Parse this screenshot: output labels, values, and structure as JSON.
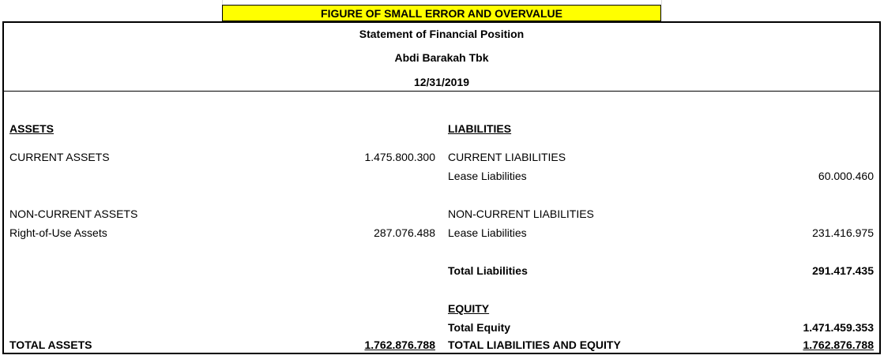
{
  "banner": "FIGURE OF SMALL ERROR AND OVERVALUE",
  "header": {
    "title": "Statement of Financial Position",
    "company": "Abdi Barakah Tbk",
    "date": "12/31/2019"
  },
  "assets": {
    "heading": "ASSETS",
    "current_label": "CURRENT ASSETS",
    "current_value": "1.475.800.300",
    "noncurrent_label": "NON-CURRENT ASSETS",
    "rou_label": "Right-of-Use Assets",
    "rou_value": "287.076.488",
    "total_label": "TOTAL ASSETS",
    "total_value": "1.762.876.788"
  },
  "liabilities": {
    "heading": "LIABILITIES",
    "current_label": "CURRENT LIABILITIES",
    "lease_current_label": "Lease Liabilities",
    "lease_current_value": "60.000.460",
    "noncurrent_label": "NON-CURRENT LIABILITIES",
    "lease_noncurrent_label": "Lease Liabilities",
    "lease_noncurrent_value": "231.416.975",
    "total_label": "Total Liabilities",
    "total_value": "291.417.435"
  },
  "equity": {
    "heading": "EQUITY",
    "total_label": "Total Equity",
    "total_value": "1.471.459.353",
    "grand_label": "TOTAL LIABILITIES AND EQUITY",
    "grand_value": "1.762.876.788"
  }
}
